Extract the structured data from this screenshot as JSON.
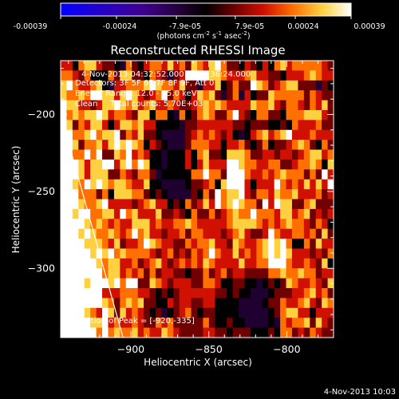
{
  "colorbar": {
    "ticks": [
      "-0.00039",
      "-0.00024",
      "-7.9e-05",
      "7.9e-05",
      "0.00024",
      "0.00039"
    ],
    "range": [
      -0.00039,
      0.00039
    ],
    "units_prefix": "(photons cm",
    "units_exp1": "-2",
    "units_mid": " s",
    "units_exp2": "-1",
    "units_suffix": " asec",
    "units_exp3": "-2",
    "units_close": ")"
  },
  "title": "Reconstructed RHESSI Image",
  "info": {
    "time_range": "4-Nov-2013 04:32:52.000 to 04:36:24.000",
    "detectors": "Detectors: 3F 5F 6F 7F 8F 9F, Att 0",
    "energy": "Energy Range: 12.0 - 25.0 keV",
    "clean": "Clean     Total counts: 5.70E+03",
    "peak": "Position of Peak = [-920,-335]"
  },
  "footer_timestamp": "4-Nov-2013 10:03",
  "chart_data": {
    "type": "heatmap",
    "title": "Reconstructed RHESSI Image",
    "xlabel": "Heliocentric X (arcsec)",
    "ylabel": "Heliocentric Y (arcsec)",
    "xlim": [
      -945,
      -770
    ],
    "ylim": [
      -345,
      -165
    ],
    "xticks": [
      -900,
      -850,
      -800
    ],
    "yticks": [
      -200,
      -250,
      -300
    ],
    "limb_line": [
      [
        -945,
        -200
      ],
      [
        -905,
        -345
      ]
    ],
    "peak": [
      -920,
      -335
    ],
    "colorscale": [
      "#0000ff",
      "#400090",
      "#200030",
      "#000000",
      "#700000",
      "#d01000",
      "#ff7000",
      "#ffd040",
      "#ffffff"
    ],
    "intensity_rows": [
      "5536775443264356657564765786443543536756666654",
      "6654633364774436542458888776555675544355567655",
      "7865567325566678766574425573464487645677444243",
      "7667688775787545684653576742462534476666646544",
      "8775545778767567556544567676555576675466546574",
      "8676778756654773663263467644685436644366677754",
      "9746577535776755333324455555544344433436555644",
      "9866786778465744322224565654532356756785556555",
      "9974667578787635432224666553556434634456764364",
      "9966868447685653323335367443777644554554567756",
      "9887577885786873323335357555887665566445667637",
      "9987577744654664233333668664888655656766646485",
      "9976878767765573322223445637888535558656575758",
      "9996664637776643432222436486778546657667555645",
      "9987667855554567553436457586787664858774467444",
      "9878866775867555744543644645676686665775674545",
      "8998767656557775655667655555677776565676654653",
      "8897876676568675545564665554567544586556656474",
      "8998777657455687655446566755476556797863364755",
      "8888878786766665456454656865575656787875554546",
      "8898887677556456754565657655557556688865565473",
      "8899988677565646455443446456455444466766766455",
      "8989788878688447654555446653344332343476556547",
      "9999888555666554343455555544343322234445567564",
      "9998888764676744335455445533332222344655675476",
      "9998765874756543423456434433332222234677553555",
      "9999877856556544656444446433433222232656674754",
      "9999986867667565576544445544344433343664546544"
    ]
  }
}
